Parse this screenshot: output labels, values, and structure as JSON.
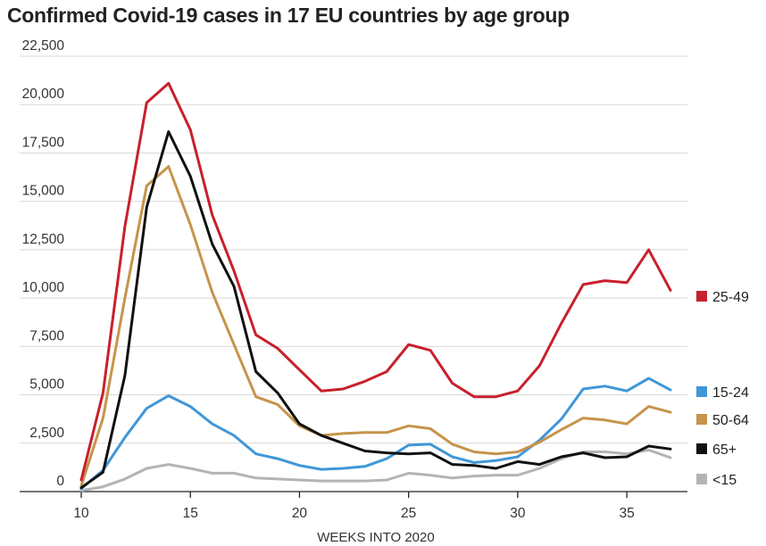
{
  "chart_data": {
    "type": "line",
    "title": "Confirmed Covid-19 cases in 17 EU countries by age group",
    "xlabel": "WEEKS INTO 2020",
    "ylabel": "",
    "xlim": [
      10,
      37
    ],
    "ylim": [
      0,
      22500
    ],
    "x_ticks": [
      10,
      15,
      20,
      25,
      30,
      35
    ],
    "y_ticks": [
      0,
      2500,
      5000,
      7500,
      10000,
      12500,
      15000,
      17500,
      20000,
      22500
    ],
    "y_tick_labels": [
      "0",
      "2,500",
      "5,000",
      "7,500",
      "10,000",
      "12,500",
      "15,000",
      "17,500",
      "20,000",
      "22,500"
    ],
    "grid": true,
    "legend_placement": "right",
    "x": [
      10,
      11,
      12,
      13,
      14,
      15,
      16,
      17,
      18,
      19,
      20,
      21,
      22,
      23,
      24,
      25,
      26,
      27,
      28,
      29,
      30,
      31,
      32,
      33,
      34,
      35,
      36,
      37
    ],
    "series": [
      {
        "name": "<15",
        "color": "#b4b4b4",
        "values": [
          50,
          250,
          650,
          1200,
          1400,
          1200,
          950,
          950,
          700,
          650,
          600,
          550,
          550,
          550,
          600,
          950,
          850,
          700,
          800,
          850,
          850,
          1200,
          1700,
          2050,
          2050,
          1950,
          2150,
          1750
        ]
      },
      {
        "name": "15-24",
        "color": "#3f97d8",
        "values": [
          150,
          1100,
          2800,
          4300,
          4950,
          4400,
          3500,
          2900,
          1950,
          1700,
          1350,
          1150,
          1200,
          1300,
          1700,
          2400,
          2450,
          1800,
          1500,
          1600,
          1800,
          2650,
          3750,
          5300,
          5450,
          5200,
          5850,
          5250
        ]
      },
      {
        "name": "50-64",
        "color": "#c6944b",
        "values": [
          300,
          3800,
          10000,
          15800,
          16800,
          13800,
          10300,
          7600,
          4900,
          4500,
          3400,
          2900,
          3000,
          3050,
          3050,
          3400,
          3250,
          2450,
          2050,
          1950,
          2050,
          2550,
          3200,
          3800,
          3700,
          3500,
          4400,
          4100
        ]
      },
      {
        "name": "65+",
        "color": "#111111",
        "values": [
          200,
          1000,
          6000,
          14700,
          18600,
          16300,
          12800,
          10600,
          6200,
          5100,
          3500,
          2900,
          2500,
          2100,
          2000,
          1950,
          2000,
          1400,
          1350,
          1200,
          1550,
          1400,
          1800,
          2000,
          1750,
          1800,
          2350,
          2200
        ]
      },
      {
        "name": "25-49",
        "color": "#c8202c",
        "values": [
          600,
          5100,
          13700,
          20100,
          21100,
          18700,
          14300,
          11400,
          8100,
          7400,
          6300,
          5200,
          5300,
          5700,
          6200,
          7600,
          7300,
          5600,
          4900,
          4900,
          5200,
          6500,
          8700,
          10700,
          10900,
          10800,
          12500,
          10400
        ]
      }
    ],
    "legend": [
      {
        "name": "25-49",
        "color": "#c8202c"
      },
      {
        "name": "15-24",
        "color": "#3f97d8"
      },
      {
        "name": "50-64",
        "color": "#c6944b"
      },
      {
        "name": "65+",
        "color": "#111111"
      },
      {
        "name": "<15",
        "color": "#b4b4b4"
      }
    ]
  }
}
